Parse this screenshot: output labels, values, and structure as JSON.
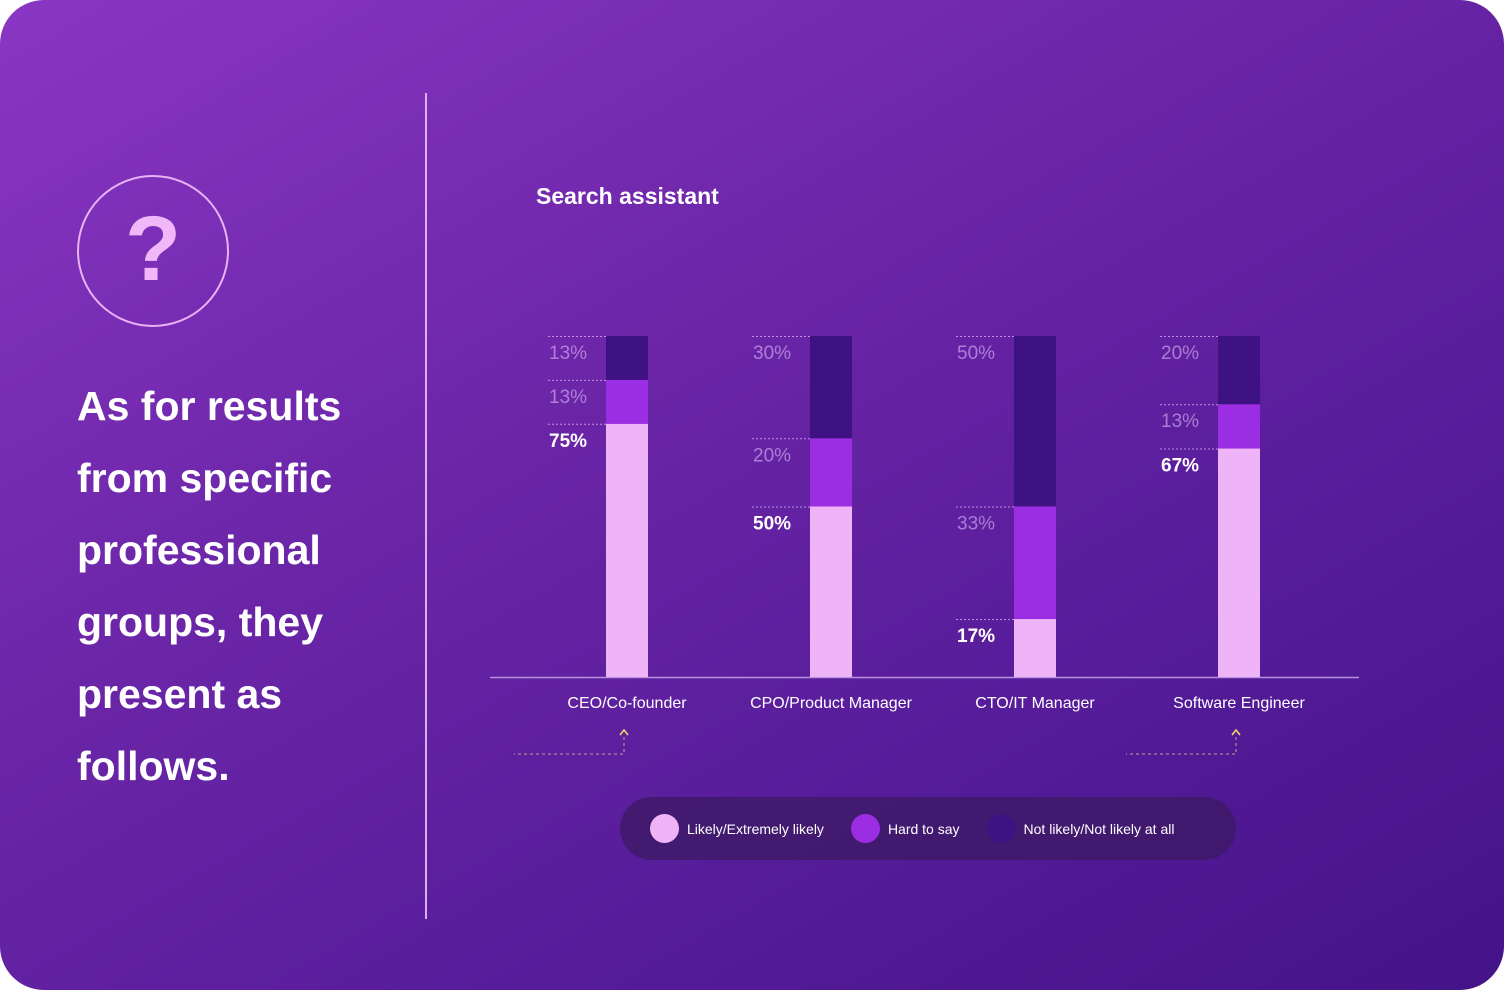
{
  "intro": {
    "icon": "question-mark-icon",
    "icon_glyph": "?",
    "text": "As for results from specific professional groups, they present as follows."
  },
  "colors": {
    "likely": "#efb4f8",
    "hard": "#9b2ee3",
    "not_likely": "#3e1283",
    "axis": "#b592e0"
  },
  "chart_data": {
    "type": "bar",
    "stacked": true,
    "title": "Search assistant",
    "categories": [
      "CEO/Co-founder",
      "CPO/Product Manager",
      "CTO/IT Manager",
      "Software Engineer"
    ],
    "series": [
      {
        "name": "Likely/Extremely likely",
        "values": [
          75,
          50,
          17,
          67
        ],
        "labels": [
          "75%",
          "50%",
          "17%",
          "67%"
        ]
      },
      {
        "name": "Hard to say",
        "values": [
          13,
          20,
          33,
          13
        ],
        "labels": [
          "13%",
          "20%",
          "33%",
          "13%"
        ]
      },
      {
        "name": "Not likely/Not likely at all",
        "values": [
          13,
          30,
          50,
          20
        ],
        "labels": [
          "13%",
          "30%",
          "50%",
          "20%"
        ]
      }
    ],
    "highlighted_categories": [
      "CEO/Co-founder",
      "Software Engineer"
    ],
    "legend_position": "bottom"
  }
}
